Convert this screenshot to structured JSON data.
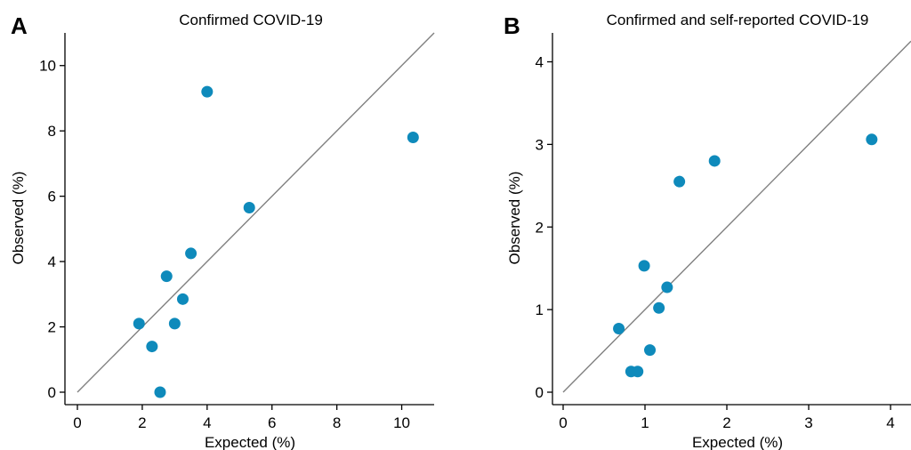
{
  "chart_data": [
    {
      "type": "scatter",
      "panel_label": "A",
      "title": "Confirmed COVID-19",
      "xlabel": "Expected (%)",
      "ylabel": "Observed (%)",
      "xlim": [
        0,
        11
      ],
      "ylim": [
        0,
        11
      ],
      "xticks": [
        "0",
        "2",
        "4",
        "6",
        "8",
        "10"
      ],
      "yticks": [
        "0",
        "2",
        "4",
        "6",
        "8",
        "10"
      ],
      "reference_line": {
        "from": [
          0,
          0
        ],
        "to": [
          11,
          11
        ]
      },
      "marker_color": "#0e8abb",
      "reference_color": "#808080",
      "grid": false,
      "points": [
        {
          "x": 1.9,
          "y": 2.1
        },
        {
          "x": 2.3,
          "y": 1.4
        },
        {
          "x": 2.55,
          "y": 0.0
        },
        {
          "x": 2.75,
          "y": 3.55
        },
        {
          "x": 3.0,
          "y": 2.1
        },
        {
          "x": 3.25,
          "y": 2.85
        },
        {
          "x": 3.5,
          "y": 4.25
        },
        {
          "x": 4.0,
          "y": 9.2
        },
        {
          "x": 5.3,
          "y": 5.65
        },
        {
          "x": 10.35,
          "y": 7.8
        }
      ]
    },
    {
      "type": "scatter",
      "panel_label": "B",
      "title": "Confirmed and self-reported COVID-19",
      "xlabel": "Expected (%)",
      "ylabel": "Observed (%)",
      "xlim": [
        0,
        4.25
      ],
      "ylim": [
        0,
        4.35
      ],
      "xticks": [
        "0",
        "1",
        "2",
        "3",
        "4"
      ],
      "yticks": [
        "0",
        "1",
        "2",
        "3",
        "4"
      ],
      "reference_line": {
        "from": [
          0,
          0
        ],
        "to": [
          4.25,
          4.25
        ]
      },
      "marker_color": "#0e8abb",
      "reference_color": "#808080",
      "grid": false,
      "points": [
        {
          "x": 0.68,
          "y": 0.77
        },
        {
          "x": 0.83,
          "y": 0.25
        },
        {
          "x": 0.91,
          "y": 0.25
        },
        {
          "x": 0.99,
          "y": 1.53
        },
        {
          "x": 1.06,
          "y": 0.51
        },
        {
          "x": 1.17,
          "y": 1.02
        },
        {
          "x": 1.27,
          "y": 1.27
        },
        {
          "x": 1.42,
          "y": 2.55
        },
        {
          "x": 1.85,
          "y": 2.8
        },
        {
          "x": 3.77,
          "y": 3.06
        }
      ]
    }
  ]
}
